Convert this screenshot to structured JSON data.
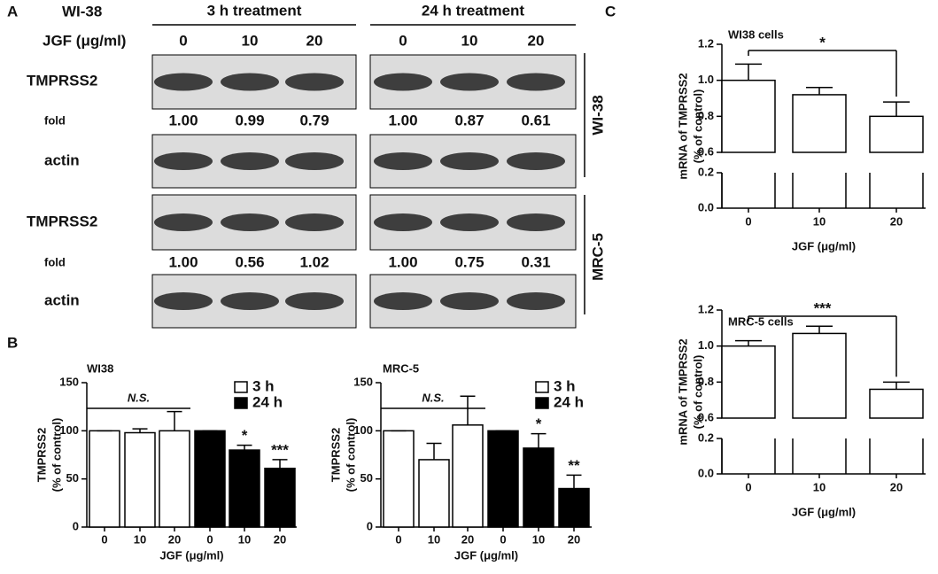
{
  "panel_labels": [
    "A",
    "B",
    "C"
  ],
  "blot": {
    "cell_line": "WI-38",
    "groups": [
      "3 h treatment",
      "24 h treatment"
    ],
    "dose_label": "JGF (μg/ml)",
    "doses": [
      [
        "0",
        "10",
        "20"
      ],
      [
        "0",
        "10",
        "20"
      ]
    ],
    "row_labels": [
      "TMPRSS2",
      "fold",
      "actin",
      "TMPRSS2",
      "fold",
      "actin"
    ],
    "fold": [
      [
        "1.00",
        "0.99",
        "0.79"
      ],
      [
        "1.00",
        "0.87",
        "0.61"
      ],
      [
        "1.00",
        "0.56",
        "1.02"
      ],
      [
        "1.00",
        "0.75",
        "0.31"
      ]
    ],
    "side_labels": [
      "WI-38",
      "MRC-5"
    ]
  },
  "chart_data": [
    {
      "type": "bar",
      "subtitle": "WI38",
      "ylabel": [
        "TMPRSS2",
        "(% of control)"
      ],
      "xlabel": "JGF (μg/ml)",
      "categories": [
        "0",
        "10",
        "20",
        "0",
        "10",
        "20"
      ],
      "series": [
        {
          "name": "3 h",
          "color": "#ffffff",
          "values": [
            100,
            98,
            100,
            null,
            null,
            null
          ],
          "errors": [
            0,
            4,
            20,
            null,
            null,
            null
          ]
        },
        {
          "name": "24 h",
          "color": "#000000",
          "values": [
            null,
            null,
            null,
            100,
            80,
            61
          ],
          "errors": [
            null,
            null,
            null,
            0,
            5,
            9
          ]
        }
      ],
      "significance": [
        null,
        null,
        null,
        null,
        "*",
        "***"
      ],
      "group_label": "N.S.",
      "ylim": [
        0,
        150
      ],
      "yticks": [
        0,
        50,
        100,
        150
      ]
    },
    {
      "type": "bar",
      "subtitle": "MRC-5",
      "ylabel": [
        "TMPRSS2",
        "(% of control)"
      ],
      "xlabel": "JGF (μg/ml)",
      "categories": [
        "0",
        "10",
        "20",
        "0",
        "10",
        "20"
      ],
      "series": [
        {
          "name": "3 h",
          "color": "#ffffff",
          "values": [
            100,
            70,
            106,
            null,
            null,
            null
          ],
          "errors": [
            0,
            17,
            30,
            null,
            null,
            null
          ]
        },
        {
          "name": "24 h",
          "color": "#000000",
          "values": [
            null,
            null,
            null,
            100,
            82,
            40
          ],
          "errors": [
            null,
            null,
            null,
            0,
            15,
            14
          ]
        }
      ],
      "significance": [
        null,
        null,
        null,
        null,
        "*",
        "**"
      ],
      "group_label": "N.S.",
      "ylim": [
        0,
        150
      ],
      "yticks": [
        0,
        50,
        100,
        150
      ]
    },
    {
      "type": "bar",
      "subtitle": "WI38 cells",
      "ylabel": [
        "mRNA of TMPRSS2",
        "(% of control)"
      ],
      "xlabel": "JGF (μg/ml)",
      "categories": [
        "0",
        "10",
        "20"
      ],
      "color": "#ffffff",
      "values": [
        1.0,
        0.92,
        0.8
      ],
      "errors": [
        0.09,
        0.04,
        0.08
      ],
      "significance": [
        null,
        null,
        "*"
      ],
      "ylim": [
        0,
        1.2
      ],
      "ybreak": [
        0.2,
        0.6
      ],
      "yticks": [
        {
          "value": 0,
          "label": "0.0"
        },
        0.2,
        0.6,
        0.8,
        {
          "value": 1,
          "label": "1.0"
        },
        1.2
      ]
    },
    {
      "type": "bar",
      "subtitle": "MRC-5 cells",
      "ylabel": [
        "mRNA of TMPRSS2",
        "(% of control)"
      ],
      "xlabel": "JGF (μg/ml)",
      "categories": [
        "0",
        "10",
        "20"
      ],
      "color": "#ffffff",
      "values": [
        1.0,
        1.07,
        0.76
      ],
      "errors": [
        0.03,
        0.04,
        0.04
      ],
      "significance": [
        null,
        null,
        "***"
      ],
      "ylim": [
        0,
        1.2
      ],
      "ybreak": [
        0.2,
        0.6
      ],
      "yticks": [
        {
          "value": 0,
          "label": "0.0"
        },
        0.2,
        0.6,
        0.8,
        {
          "value": 1,
          "label": "1.0"
        },
        1.2
      ]
    }
  ]
}
